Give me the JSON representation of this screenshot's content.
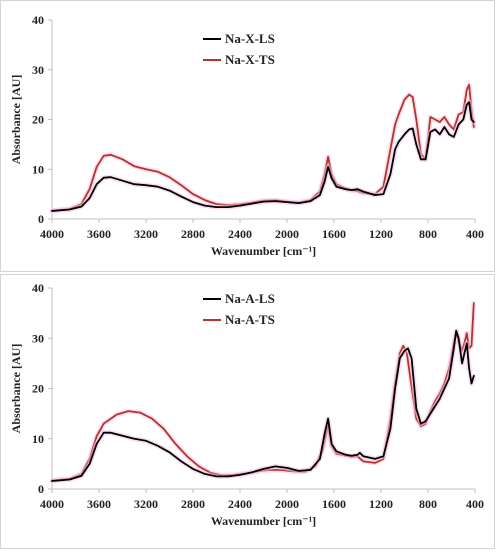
{
  "chart_data": [
    {
      "type": "line",
      "xlabel": "Wavenumber [cm⁻¹]",
      "ylabel": "Absorbance [AU]",
      "xlim": [
        4000,
        400
      ],
      "x_reversed": true,
      "ylim": [
        0,
        40
      ],
      "x_ticks": [
        "4000",
        "3600",
        "3200",
        "2800",
        "2400",
        "2000",
        "1600",
        "1200",
        "800",
        "400"
      ],
      "y_ticks": [
        "0",
        "10",
        "20",
        "30",
        "40"
      ],
      "grid": false,
      "legend": "top-center",
      "series": [
        {
          "name": "Na-X-LS",
          "color": "#000000",
          "points": [
            [
              4000,
              1.6
            ],
            [
              3850,
              1.9
            ],
            [
              3750,
              2.5
            ],
            [
              3680,
              4.2
            ],
            [
              3620,
              7.0
            ],
            [
              3560,
              8.3
            ],
            [
              3500,
              8.4
            ],
            [
              3400,
              7.7
            ],
            [
              3300,
              7.0
            ],
            [
              3200,
              6.8
            ],
            [
              3100,
              6.5
            ],
            [
              3000,
              5.7
            ],
            [
              2900,
              4.5
            ],
            [
              2800,
              3.4
            ],
            [
              2700,
              2.7
            ],
            [
              2600,
              2.4
            ],
            [
              2500,
              2.4
            ],
            [
              2400,
              2.7
            ],
            [
              2300,
              3.1
            ],
            [
              2200,
              3.5
            ],
            [
              2100,
              3.6
            ],
            [
              2000,
              3.4
            ],
            [
              1900,
              3.2
            ],
            [
              1800,
              3.6
            ],
            [
              1720,
              4.8
            ],
            [
              1680,
              7.5
            ],
            [
              1650,
              10.5
            ],
            [
              1620,
              8.2
            ],
            [
              1580,
              6.5
            ],
            [
              1500,
              6.0
            ],
            [
              1450,
              5.8
            ],
            [
              1400,
              6.0
            ],
            [
              1350,
              5.5
            ],
            [
              1250,
              4.8
            ],
            [
              1180,
              5.0
            ],
            [
              1120,
              9.0
            ],
            [
              1080,
              14.0
            ],
            [
              1050,
              15.5
            ],
            [
              1000,
              17.0
            ],
            [
              960,
              18.0
            ],
            [
              930,
              18.2
            ],
            [
              900,
              15.0
            ],
            [
              860,
              12.0
            ],
            [
              820,
              12.0
            ],
            [
              780,
              17.5
            ],
            [
              740,
              18.0
            ],
            [
              700,
              17.0
            ],
            [
              660,
              18.5
            ],
            [
              620,
              17.0
            ],
            [
              580,
              16.5
            ],
            [
              540,
              19.0
            ],
            [
              500,
              20.0
            ],
            [
              470,
              23.0
            ],
            [
              450,
              23.5
            ],
            [
              430,
              20.0
            ],
            [
              410,
              19.5
            ]
          ]
        },
        {
          "name": "Na-X-TS",
          "color": "#b5342a",
          "points": [
            [
              4000,
              1.7
            ],
            [
              3850,
              2.0
            ],
            [
              3750,
              3.0
            ],
            [
              3680,
              6.0
            ],
            [
              3620,
              10.5
            ],
            [
              3560,
              12.7
            ],
            [
              3500,
              12.9
            ],
            [
              3400,
              12.0
            ],
            [
              3300,
              10.6
            ],
            [
              3200,
              10.0
            ],
            [
              3100,
              9.5
            ],
            [
              3000,
              8.4
            ],
            [
              2900,
              6.8
            ],
            [
              2800,
              5.0
            ],
            [
              2700,
              3.8
            ],
            [
              2600,
              3.0
            ],
            [
              2500,
              2.8
            ],
            [
              2400,
              3.0
            ],
            [
              2300,
              3.3
            ],
            [
              2200,
              3.7
            ],
            [
              2100,
              3.8
            ],
            [
              2000,
              3.5
            ],
            [
              1900,
              3.3
            ],
            [
              1800,
              3.8
            ],
            [
              1720,
              5.5
            ],
            [
              1680,
              9.0
            ],
            [
              1650,
              12.5
            ],
            [
              1620,
              9.0
            ],
            [
              1580,
              7.0
            ],
            [
              1500,
              6.1
            ],
            [
              1450,
              5.8
            ],
            [
              1400,
              5.6
            ],
            [
              1350,
              5.2
            ],
            [
              1250,
              5.0
            ],
            [
              1180,
              6.5
            ],
            [
              1120,
              14.0
            ],
            [
              1080,
              19.0
            ],
            [
              1050,
              21.0
            ],
            [
              1000,
              24.0
            ],
            [
              960,
              25.0
            ],
            [
              930,
              24.5
            ],
            [
              900,
              20.0
            ],
            [
              860,
              13.0
            ],
            [
              820,
              12.0
            ],
            [
              780,
              20.5
            ],
            [
              740,
              20.0
            ],
            [
              700,
              19.5
            ],
            [
              660,
              20.5
            ],
            [
              620,
              19.0
            ],
            [
              580,
              18.0
            ],
            [
              540,
              21.0
            ],
            [
              500,
              21.5
            ],
            [
              470,
              26.0
            ],
            [
              450,
              27.0
            ],
            [
              430,
              22.0
            ],
            [
              410,
              18.5
            ]
          ]
        }
      ]
    },
    {
      "type": "line",
      "xlabel": "Wavenumber [cm⁻¹]",
      "ylabel": "Absorbance [AU]",
      "xlim": [
        4000,
        400
      ],
      "x_reversed": true,
      "ylim": [
        0,
        40
      ],
      "x_ticks": [
        "4000",
        "3600",
        "3200",
        "2800",
        "2400",
        "2000",
        "1600",
        "1200",
        "800",
        "400"
      ],
      "y_ticks": [
        "0",
        "10",
        "20",
        "30",
        "40"
      ],
      "grid": false,
      "legend": "top-center",
      "series": [
        {
          "name": "Na-A-LS",
          "color": "#000000",
          "points": [
            [
              4000,
              1.6
            ],
            [
              3850,
              1.9
            ],
            [
              3750,
              2.6
            ],
            [
              3680,
              5.0
            ],
            [
              3620,
              9.0
            ],
            [
              3560,
              11.2
            ],
            [
              3500,
              11.2
            ],
            [
              3400,
              10.6
            ],
            [
              3300,
              10.0
            ],
            [
              3200,
              9.6
            ],
            [
              3100,
              8.6
            ],
            [
              3000,
              7.3
            ],
            [
              2900,
              5.5
            ],
            [
              2800,
              4.0
            ],
            [
              2700,
              3.0
            ],
            [
              2600,
              2.5
            ],
            [
              2500,
              2.5
            ],
            [
              2400,
              2.8
            ],
            [
              2300,
              3.3
            ],
            [
              2200,
              4.0
            ],
            [
              2100,
              4.5
            ],
            [
              2000,
              4.2
            ],
            [
              1900,
              3.6
            ],
            [
              1800,
              3.8
            ],
            [
              1720,
              6.0
            ],
            [
              1680,
              11.0
            ],
            [
              1650,
              14.0
            ],
            [
              1620,
              9.0
            ],
            [
              1580,
              7.5
            ],
            [
              1500,
              6.8
            ],
            [
              1450,
              6.6
            ],
            [
              1400,
              6.8
            ],
            [
              1380,
              7.2
            ],
            [
              1350,
              6.5
            ],
            [
              1250,
              6.0
            ],
            [
              1180,
              6.5
            ],
            [
              1120,
              12.0
            ],
            [
              1080,
              20.0
            ],
            [
              1040,
              26.0
            ],
            [
              1000,
              27.5
            ],
            [
              970,
              28.0
            ],
            [
              940,
              26.0
            ],
            [
              900,
              16.0
            ],
            [
              860,
              13.0
            ],
            [
              820,
              13.5
            ],
            [
              780,
              15.0
            ],
            [
              740,
              16.5
            ],
            [
              700,
              18.0
            ],
            [
              660,
              20.0
            ],
            [
              620,
              22.0
            ],
            [
              580,
              28.0
            ],
            [
              560,
              31.5
            ],
            [
              540,
              30.0
            ],
            [
              510,
              25.0
            ],
            [
              490,
              27.0
            ],
            [
              470,
              29.0
            ],
            [
              450,
              24.0
            ],
            [
              430,
              21.0
            ],
            [
              410,
              22.5
            ]
          ]
        },
        {
          "name": "Na-A-TS",
          "color": "#b5342a",
          "points": [
            [
              4000,
              1.7
            ],
            [
              3850,
              2.0
            ],
            [
              3750,
              3.0
            ],
            [
              3680,
              6.0
            ],
            [
              3620,
              10.5
            ],
            [
              3560,
              13.0
            ],
            [
              3450,
              14.8
            ],
            [
              3350,
              15.5
            ],
            [
              3250,
              15.2
            ],
            [
              3150,
              14.0
            ],
            [
              3050,
              12.0
            ],
            [
              2950,
              9.0
            ],
            [
              2850,
              6.5
            ],
            [
              2750,
              4.5
            ],
            [
              2650,
              3.2
            ],
            [
              2550,
              2.7
            ],
            [
              2450,
              2.8
            ],
            [
              2350,
              3.1
            ],
            [
              2250,
              3.5
            ],
            [
              2150,
              3.8
            ],
            [
              2050,
              3.8
            ],
            [
              1950,
              3.5
            ],
            [
              1850,
              3.4
            ],
            [
              1760,
              4.5
            ],
            [
              1700,
              7.5
            ],
            [
              1670,
              10.5
            ],
            [
              1650,
              12.5
            ],
            [
              1620,
              8.5
            ],
            [
              1580,
              7.0
            ],
            [
              1500,
              6.6
            ],
            [
              1450,
              6.4
            ],
            [
              1400,
              6.5
            ],
            [
              1350,
              5.5
            ],
            [
              1250,
              5.2
            ],
            [
              1180,
              6.0
            ],
            [
              1120,
              14.0
            ],
            [
              1080,
              21.0
            ],
            [
              1040,
              27.0
            ],
            [
              1010,
              28.5
            ],
            [
              980,
              27.0
            ],
            [
              950,
              22.0
            ],
            [
              900,
              14.0
            ],
            [
              860,
              12.5
            ],
            [
              820,
              13.0
            ],
            [
              780,
              15.5
            ],
            [
              740,
              17.5
            ],
            [
              700,
              19.0
            ],
            [
              660,
              21.0
            ],
            [
              620,
              24.0
            ],
            [
              580,
              29.0
            ],
            [
              560,
              31.0
            ],
            [
              540,
              29.5
            ],
            [
              510,
              27.5
            ],
            [
              490,
              29.0
            ],
            [
              470,
              31.0
            ],
            [
              450,
              28.0
            ],
            [
              430,
              28.5
            ],
            [
              410,
              37.0
            ]
          ]
        }
      ]
    }
  ]
}
